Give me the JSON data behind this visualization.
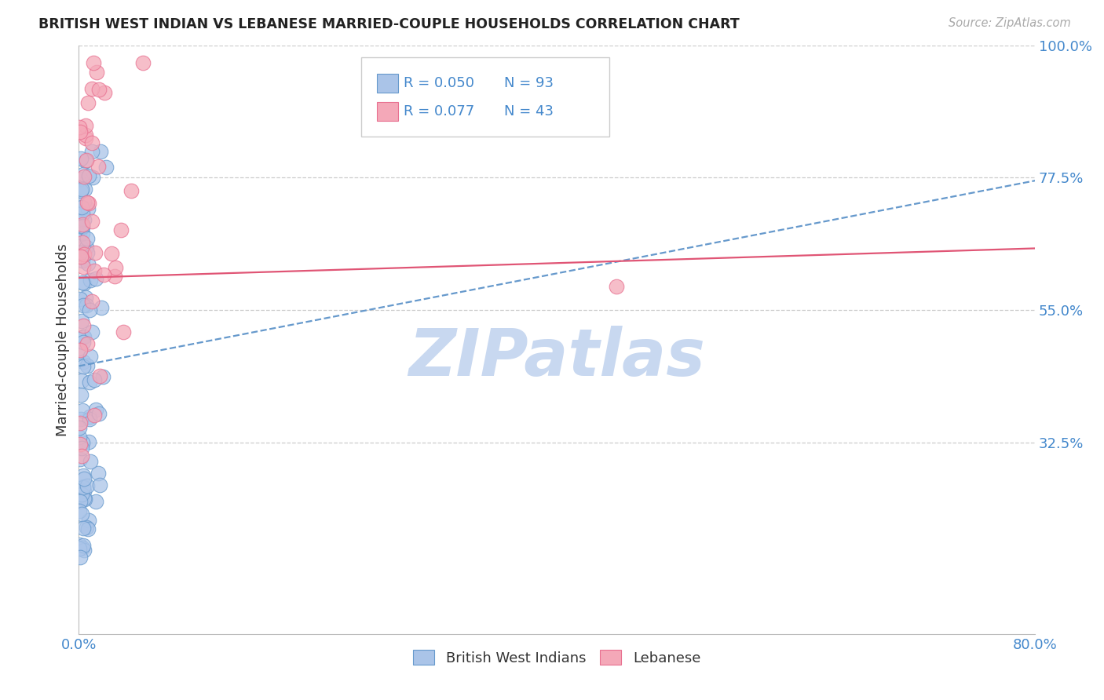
{
  "title": "BRITISH WEST INDIAN VS LEBANESE MARRIED-COUPLE HOUSEHOLDS CORRELATION CHART",
  "source": "Source: ZipAtlas.com",
  "ylabel": "Married-couple Households",
  "xlim": [
    0.0,
    0.8
  ],
  "ylim": [
    0.0,
    1.0
  ],
  "yticks": [
    0.325,
    0.55,
    0.775,
    1.0
  ],
  "ytick_labels": [
    "32.5%",
    "55.0%",
    "77.5%",
    "100.0%"
  ],
  "xtick_labels": [
    "0.0%",
    "80.0%"
  ],
  "xticks": [
    0.0,
    0.8
  ],
  "series1_color": "#aac4e8",
  "series2_color": "#f4a8b8",
  "series1_edge": "#6699cc",
  "series2_edge": "#e87090",
  "trend1_color": "#6699cc",
  "trend2_color": "#e05575",
  "watermark": "ZIPatlas",
  "watermark_color": "#c8d8f0",
  "background_color": "#ffffff",
  "gridline_color": "#cccccc",
  "axis_label_color": "#4488cc",
  "title_color": "#222222",
  "bwi_trend_x": [
    0.0,
    0.8
  ],
  "bwi_trend_y": [
    0.455,
    0.77
  ],
  "leb_trend_x": [
    0.0,
    0.8
  ],
  "leb_trend_y": [
    0.605,
    0.655
  ]
}
